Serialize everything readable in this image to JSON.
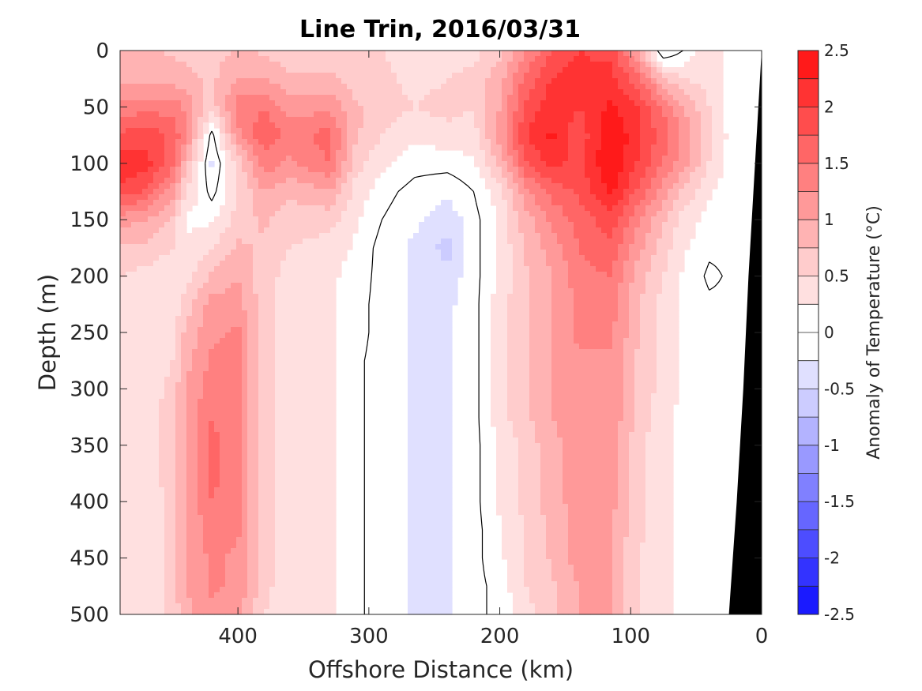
{
  "chart_data": {
    "type": "heatmap",
    "title": "Line Trin, 2016/03/31",
    "xlabel": "Offshore Distance (km)",
    "ylabel": "Depth (m)",
    "colorbar_label": "Anomaly of Temperature (°C)",
    "xlim": [
      490,
      0
    ],
    "ylim": [
      0,
      500
    ],
    "x_reversed": true,
    "y_reversed": true,
    "xticks": [
      400,
      300,
      200,
      100,
      0
    ],
    "yticks": [
      0,
      50,
      100,
      150,
      200,
      250,
      300,
      350,
      400,
      450,
      500
    ],
    "clim": [
      -2.5,
      2.5
    ],
    "cbar_ticks": [
      2.5,
      2,
      1.5,
      1,
      0.5,
      0,
      -0.5,
      -1,
      -1.5,
      -2,
      -2.5
    ],
    "contour_levels": [
      -2.5,
      -2.25,
      -2,
      -1.75,
      -1.5,
      -1.25,
      -1,
      -0.75,
      -0.5,
      -0.25,
      0,
      0.25,
      0.5,
      0.75,
      1,
      1.25,
      1.5,
      1.75,
      2,
      2.25,
      2.5
    ],
    "level_colors": [
      "#1a1aff",
      "#3333ff",
      "#4d4dff",
      "#6666ff",
      "#8080ff",
      "#9999ff",
      "#b3b3ff",
      "#ccccff",
      "#e0e0ff",
      "#ffffff",
      "#ffffff",
      "#ffe0e0",
      "#ffcccc",
      "#ffb3b3",
      "#ff9999",
      "#ff8080",
      "#ff6666",
      "#ff4d4d",
      "#ff3333",
      "#ff1a1a"
    ],
    "zero_contour_color": "#000000",
    "land_color": "#000000",
    "depth_grid": [
      0,
      25,
      50,
      75,
      100,
      125,
      150,
      175,
      200,
      225,
      250,
      275,
      300,
      325,
      350,
      375,
      400,
      425,
      450,
      475,
      500
    ],
    "field": [
      {
        "x": 490,
        "values": [
          0.8,
          0.9,
          1.3,
          1.8,
          2.2,
          1.9,
          1.1,
          0.7,
          0.5,
          0.4,
          0.4,
          0.4,
          0.4,
          0.4,
          0.4,
          0.4,
          0.4,
          0.4,
          0.4,
          0.4,
          0.4
        ]
      },
      {
        "x": 470,
        "values": [
          0.8,
          0.9,
          1.4,
          1.9,
          2.1,
          1.7,
          1.0,
          0.7,
          0.4,
          0.3,
          0.3,
          0.3,
          0.3,
          0.3,
          0.3,
          0.3,
          0.3,
          0.3,
          0.3,
          0.3,
          0.3
        ]
      },
      {
        "x": 450,
        "values": [
          0.7,
          0.9,
          1.4,
          1.7,
          1.6,
          1.1,
          0.7,
          0.5,
          0.3,
          0.3,
          0.4,
          0.5,
          0.6,
          0.7,
          0.7,
          0.7,
          0.6,
          0.6,
          0.6,
          0.6,
          0.6
        ]
      },
      {
        "x": 440,
        "values": [
          0.7,
          0.8,
          1.2,
          1.3,
          0.9,
          0.5,
          0.2,
          0.3,
          0.4,
          0.6,
          0.8,
          0.9,
          1.0,
          1.0,
          1.0,
          1.0,
          1.0,
          1.0,
          1.0,
          1.0,
          0.9
        ]
      },
      {
        "x": 420,
        "values": [
          0.6,
          0.7,
          0.6,
          -0.1,
          -0.3,
          -0.1,
          0.2,
          0.5,
          0.8,
          1.1,
          1.2,
          1.3,
          1.4,
          1.5,
          1.6,
          1.6,
          1.5,
          1.4,
          1.3,
          1.3,
          1.2
        ]
      },
      {
        "x": 400,
        "values": [
          0.8,
          1.0,
          1.4,
          1.2,
          0.6,
          0.5,
          0.6,
          0.8,
          1.0,
          1.1,
          1.3,
          1.3,
          1.3,
          1.3,
          1.3,
          1.3,
          1.3,
          1.3,
          1.2,
          1.2,
          1.1
        ]
      },
      {
        "x": 380,
        "values": [
          0.7,
          1.0,
          1.5,
          1.7,
          1.4,
          1.0,
          0.8,
          0.7,
          0.6,
          0.6,
          0.6,
          0.6,
          0.6,
          0.6,
          0.6,
          0.6,
          0.6,
          0.6,
          0.6,
          0.6,
          0.5
        ]
      },
      {
        "x": 360,
        "values": [
          0.6,
          0.8,
          1.1,
          1.4,
          1.2,
          0.8,
          0.6,
          0.5,
          0.4,
          0.3,
          0.3,
          0.3,
          0.3,
          0.3,
          0.3,
          0.3,
          0.3,
          0.3,
          0.3,
          0.3,
          0.3
        ]
      },
      {
        "x": 330,
        "values": [
          0.6,
          0.8,
          1.2,
          1.6,
          1.5,
          1.0,
          0.6,
          0.4,
          0.3,
          0.3,
          0.3,
          0.3,
          0.3,
          0.3,
          0.3,
          0.3,
          0.3,
          0.3,
          0.3,
          0.3,
          0.3
        ]
      },
      {
        "x": 310,
        "values": [
          0.5,
          0.6,
          0.8,
          0.8,
          0.6,
          0.4,
          0.3,
          0.2,
          0.15,
          0.1,
          0.1,
          0.05,
          0.05,
          0.05,
          0.05,
          0.05,
          0.05,
          0.05,
          0.05,
          0.05,
          0.05
        ]
      },
      {
        "x": 290,
        "values": [
          0.5,
          0.6,
          0.6,
          0.5,
          0.3,
          0.1,
          0.0,
          -0.1,
          -0.1,
          -0.1,
          -0.1,
          -0.1,
          -0.1,
          -0.1,
          -0.1,
          -0.1,
          -0.1,
          -0.1,
          -0.1,
          -0.1,
          -0.1
        ]
      },
      {
        "x": 265,
        "values": [
          0.3,
          0.4,
          0.5,
          0.3,
          0.1,
          -0.1,
          -0.2,
          -0.3,
          -0.3,
          -0.3,
          -0.3,
          -0.3,
          -0.3,
          -0.3,
          -0.3,
          -0.3,
          -0.3,
          -0.3,
          -0.3,
          -0.3,
          -0.3
        ]
      },
      {
        "x": 240,
        "values": [
          0.3,
          0.5,
          0.6,
          0.4,
          0.1,
          -0.2,
          -0.4,
          -0.6,
          -0.4,
          -0.3,
          -0.3,
          -0.3,
          -0.3,
          -0.3,
          -0.3,
          -0.3,
          -0.3,
          -0.3,
          -0.3,
          -0.3,
          -0.3
        ]
      },
      {
        "x": 220,
        "values": [
          0.4,
          0.6,
          0.5,
          0.4,
          0.2,
          0.0,
          -0.1,
          -0.1,
          -0.1,
          -0.1,
          -0.1,
          -0.1,
          -0.1,
          -0.1,
          -0.1,
          -0.1,
          -0.1,
          -0.1,
          -0.1,
          -0.1,
          -0.1
        ]
      },
      {
        "x": 200,
        "values": [
          0.7,
          0.9,
          1.0,
          1.1,
          0.8,
          0.4,
          0.3,
          0.3,
          0.3,
          0.4,
          0.4,
          0.4,
          0.4,
          0.4,
          0.3,
          0.3,
          0.3,
          0.2,
          0.2,
          0.1,
          0.1
        ]
      },
      {
        "x": 180,
        "values": [
          1.2,
          1.6,
          1.8,
          2.0,
          1.7,
          1.2,
          0.9,
          0.8,
          0.7,
          0.7,
          0.7,
          0.7,
          0.7,
          0.7,
          0.6,
          0.6,
          0.6,
          0.5,
          0.5,
          0.5,
          0.4
        ]
      },
      {
        "x": 160,
        "values": [
          1.8,
          2.0,
          2.2,
          2.3,
          2.1,
          1.6,
          1.3,
          1.1,
          1.0,
          1.0,
          1.0,
          1.0,
          1.0,
          1.0,
          0.9,
          0.9,
          0.9,
          0.8,
          0.8,
          0.7,
          0.7
        ]
      },
      {
        "x": 140,
        "values": [
          2.0,
          2.1,
          2.0,
          1.8,
          1.9,
          1.8,
          1.6,
          1.5,
          1.4,
          1.3,
          1.3,
          1.2,
          1.2,
          1.2,
          1.2,
          1.2,
          1.1,
          1.1,
          1.1,
          1.0,
          1.0
        ]
      },
      {
        "x": 115,
        "values": [
          1.9,
          2.1,
          2.3,
          2.5,
          2.5,
          2.3,
          1.9,
          1.7,
          1.5,
          1.4,
          1.3,
          1.2,
          1.2,
          1.2,
          1.1,
          1.1,
          1.1,
          1.0,
          1.0,
          1.0,
          1.0
        ]
      },
      {
        "x": 95,
        "values": [
          1.0,
          1.6,
          2.0,
          2.1,
          2.0,
          1.7,
          1.3,
          1.1,
          0.9,
          0.8,
          0.8,
          0.7,
          0.7,
          0.7,
          0.6,
          0.6,
          0.6,
          0.6,
          0.5,
          0.5,
          0.5
        ]
      },
      {
        "x": 75,
        "values": [
          -0.3,
          0.8,
          1.5,
          1.6,
          1.5,
          1.1,
          0.8,
          0.6,
          0.5,
          0.4,
          0.4,
          0.4,
          0.4,
          0.3,
          0.3,
          0.3,
          0.3,
          0.3,
          0.3,
          0.3,
          0.3
        ]
      },
      {
        "x": 60,
        "values": [
          0.0,
          0.5,
          1.0,
          1.2,
          1.1,
          0.7,
          0.4,
          0.3,
          0.2,
          0.2,
          0.2,
          0.2,
          0.2,
          0.2,
          0.2,
          0.2,
          0.2,
          0.2,
          0.2,
          0.2,
          0.2
        ]
      },
      {
        "x": 40,
        "values": [
          0.5,
          0.4,
          0.5,
          0.6,
          0.5,
          0.3,
          0.15,
          0.05,
          -0.05,
          0.05,
          0.05,
          0.05,
          0.05,
          0.05,
          0.05,
          0.05,
          0.05,
          0.05,
          0.05,
          0.05,
          0.05
        ]
      },
      {
        "x": 20,
        "values": [
          0.05,
          0.05,
          0.05,
          0.05,
          0.05,
          0.05,
          0.05,
          0.05,
          0.05,
          0.05,
          0.05,
          0.05,
          0.05,
          0.05,
          0.05,
          0.05,
          0.05,
          0.05,
          0.05,
          0.05,
          0.05
        ]
      },
      {
        "x": 0,
        "values": [
          0.05,
          0.05,
          0.05,
          0.05,
          0.05,
          0.05,
          0.05,
          0.05,
          0.05,
          0.05,
          0.05,
          0.05,
          0.05,
          0.05,
          0.05,
          0.05,
          0.05,
          0.05,
          0.05,
          0.05,
          0.05
        ]
      }
    ],
    "bathymetry": [
      {
        "depth": 0,
        "x": 0
      },
      {
        "depth": 100,
        "x": 5
      },
      {
        "depth": 200,
        "x": 10
      },
      {
        "depth": 300,
        "x": 14
      },
      {
        "depth": 400,
        "x": 19
      },
      {
        "depth": 500,
        "x": 25
      }
    ]
  }
}
